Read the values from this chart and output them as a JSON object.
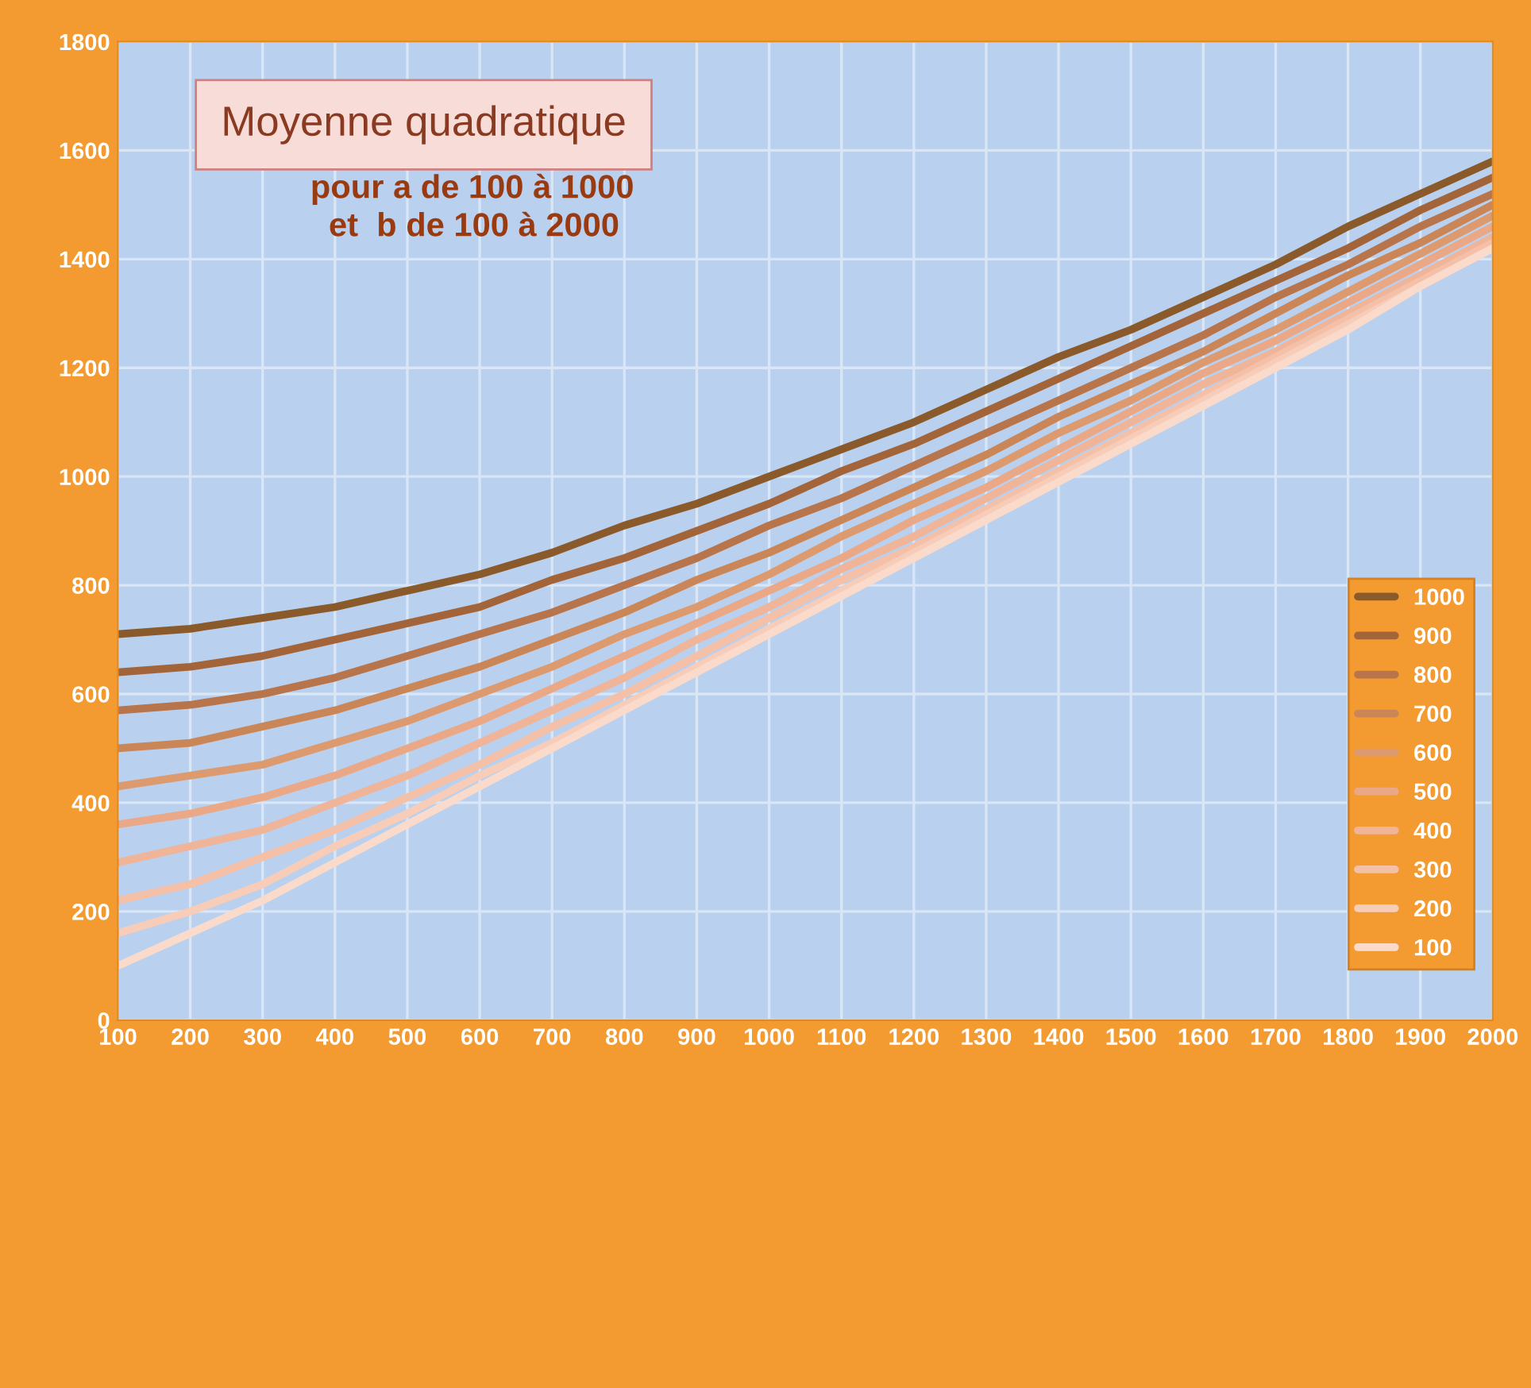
{
  "chart_data": {
    "type": "line",
    "title": "Moyenne quadratique",
    "subtitle": "pour a de 100 à 1000\n  et  b de 100 à 2000",
    "x": [
      100,
      200,
      300,
      400,
      500,
      600,
      700,
      800,
      900,
      1000,
      1100,
      1200,
      1300,
      1400,
      1500,
      1600,
      1700,
      1800,
      1900,
      2000
    ],
    "series": [
      {
        "name": "1000",
        "color": "#8b5a2b",
        "values": [
          710,
          720,
          740,
          760,
          790,
          820,
          860,
          910,
          950,
          1000,
          1050,
          1100,
          1160,
          1220,
          1270,
          1330,
          1390,
          1460,
          1520,
          1580
        ]
      },
      {
        "name": "900",
        "color": "#a3643a",
        "values": [
          640,
          650,
          670,
          700,
          730,
          760,
          810,
          850,
          900,
          950,
          1010,
          1060,
          1120,
          1180,
          1240,
          1300,
          1360,
          1420,
          1490,
          1550
        ]
      },
      {
        "name": "800",
        "color": "#b8744a",
        "values": [
          570,
          580,
          600,
          630,
          670,
          710,
          750,
          800,
          850,
          910,
          960,
          1020,
          1080,
          1140,
          1200,
          1260,
          1330,
          1390,
          1460,
          1520
        ]
      },
      {
        "name": "700",
        "color": "#cb8658",
        "values": [
          500,
          510,
          540,
          570,
          610,
          650,
          700,
          750,
          810,
          860,
          920,
          980,
          1040,
          1110,
          1170,
          1230,
          1300,
          1370,
          1430,
          1500
        ]
      },
      {
        "name": "600",
        "color": "#dc9a6e",
        "values": [
          430,
          450,
          470,
          510,
          550,
          600,
          650,
          710,
          760,
          820,
          890,
          950,
          1010,
          1080,
          1140,
          1210,
          1270,
          1340,
          1410,
          1480
        ]
      },
      {
        "name": "500",
        "color": "#eaa886",
        "values": [
          360,
          380,
          410,
          450,
          500,
          550,
          610,
          670,
          730,
          790,
          850,
          920,
          980,
          1050,
          1120,
          1190,
          1250,
          1320,
          1390,
          1460
        ]
      },
      {
        "name": "400",
        "color": "#f0b498",
        "values": [
          290,
          320,
          350,
          400,
          450,
          510,
          570,
          630,
          700,
          760,
          830,
          890,
          960,
          1030,
          1100,
          1170,
          1230,
          1300,
          1370,
          1440
        ]
      },
      {
        "name": "300",
        "color": "#f4c0a8",
        "values": [
          220,
          250,
          300,
          350,
          410,
          470,
          540,
          600,
          670,
          740,
          810,
          870,
          940,
          1010,
          1080,
          1150,
          1220,
          1290,
          1360,
          1430
        ]
      },
      {
        "name": "200",
        "color": "#f7ccb8",
        "values": [
          160,
          200,
          250,
          320,
          380,
          450,
          510,
          580,
          650,
          720,
          790,
          860,
          930,
          1000,
          1070,
          1140,
          1210,
          1280,
          1350,
          1420
        ]
      },
      {
        "name": "100",
        "color": "#fadbcb",
        "values": [
          100,
          160,
          220,
          290,
          360,
          430,
          500,
          570,
          640,
          710,
          780,
          850,
          920,
          990,
          1060,
          1130,
          1200,
          1270,
          1350,
          1420
        ]
      }
    ],
    "xlim": [
      100,
      2000
    ],
    "xticks": [
      100,
      200,
      300,
      400,
      500,
      600,
      700,
      800,
      900,
      1000,
      1100,
      1200,
      1300,
      1400,
      1500,
      1600,
      1700,
      1800,
      1900,
      2000
    ],
    "ylim": [
      0,
      1800
    ],
    "yticks": [
      0,
      200,
      400,
      600,
      800,
      1000,
      1200,
      1400,
      1600,
      1800
    ],
    "grid": true,
    "legend": "right",
    "marker": "none",
    "line_style": "solid"
  }
}
